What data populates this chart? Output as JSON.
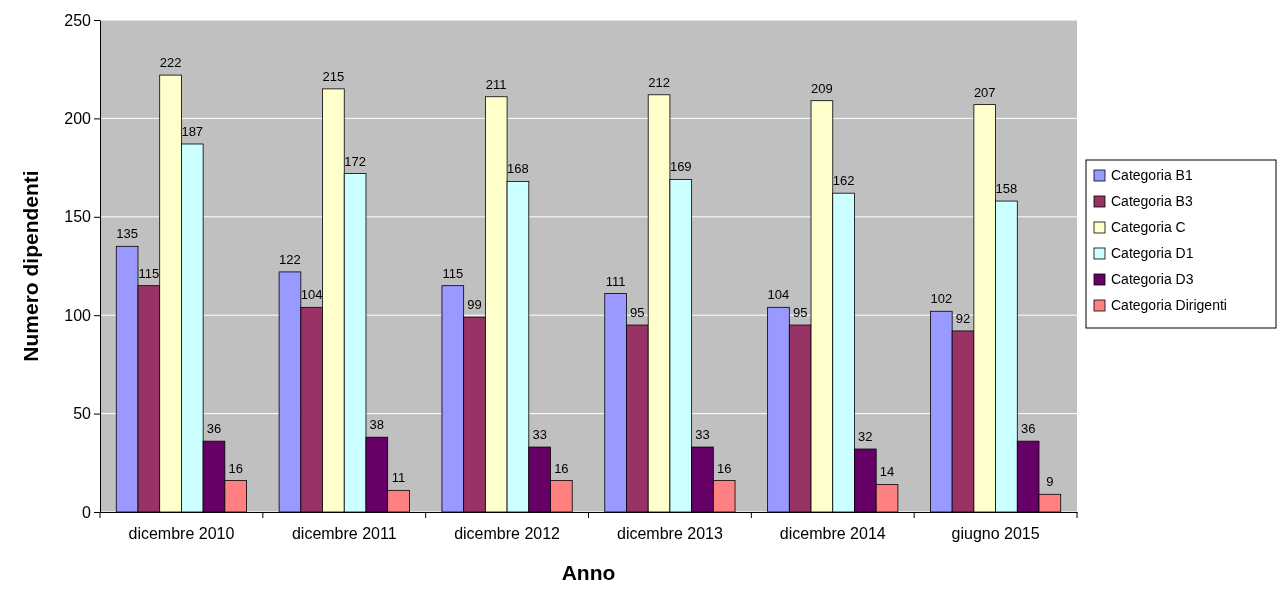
{
  "chart_data": {
    "type": "bar",
    "xlabel": "Anno",
    "ylabel": "Numero dipendenti",
    "categories": [
      "dicembre 2010",
      "dicembre 2011",
      "dicembre 2012",
      "dicembre 2013",
      "dicembre 2014",
      "giugno 2015"
    ],
    "series": [
      {
        "name": "Categoria B1",
        "color": "#9999ff",
        "values": [
          135,
          122,
          115,
          111,
          104,
          102
        ]
      },
      {
        "name": "Categoria B3",
        "color": "#993366",
        "values": [
          115,
          104,
          99,
          95,
          95,
          92
        ]
      },
      {
        "name": "Categoria C",
        "color": "#ffffcc",
        "values": [
          222,
          215,
          211,
          212,
          209,
          207
        ]
      },
      {
        "name": "Categoria D1",
        "color": "#ccffff",
        "values": [
          187,
          172,
          168,
          169,
          162,
          158
        ]
      },
      {
        "name": "Categoria D3",
        "color": "#660066",
        "values": [
          36,
          38,
          33,
          33,
          32,
          36
        ]
      },
      {
        "name": "Categoria Dirigenti",
        "color": "#ff8080",
        "values": [
          16,
          11,
          16,
          16,
          14,
          9
        ]
      }
    ],
    "ylim": [
      0,
      250
    ],
    "yticks": [
      0,
      50,
      100,
      150,
      200,
      250
    ],
    "grid": "y",
    "legend": "right",
    "data_labels": true
  }
}
